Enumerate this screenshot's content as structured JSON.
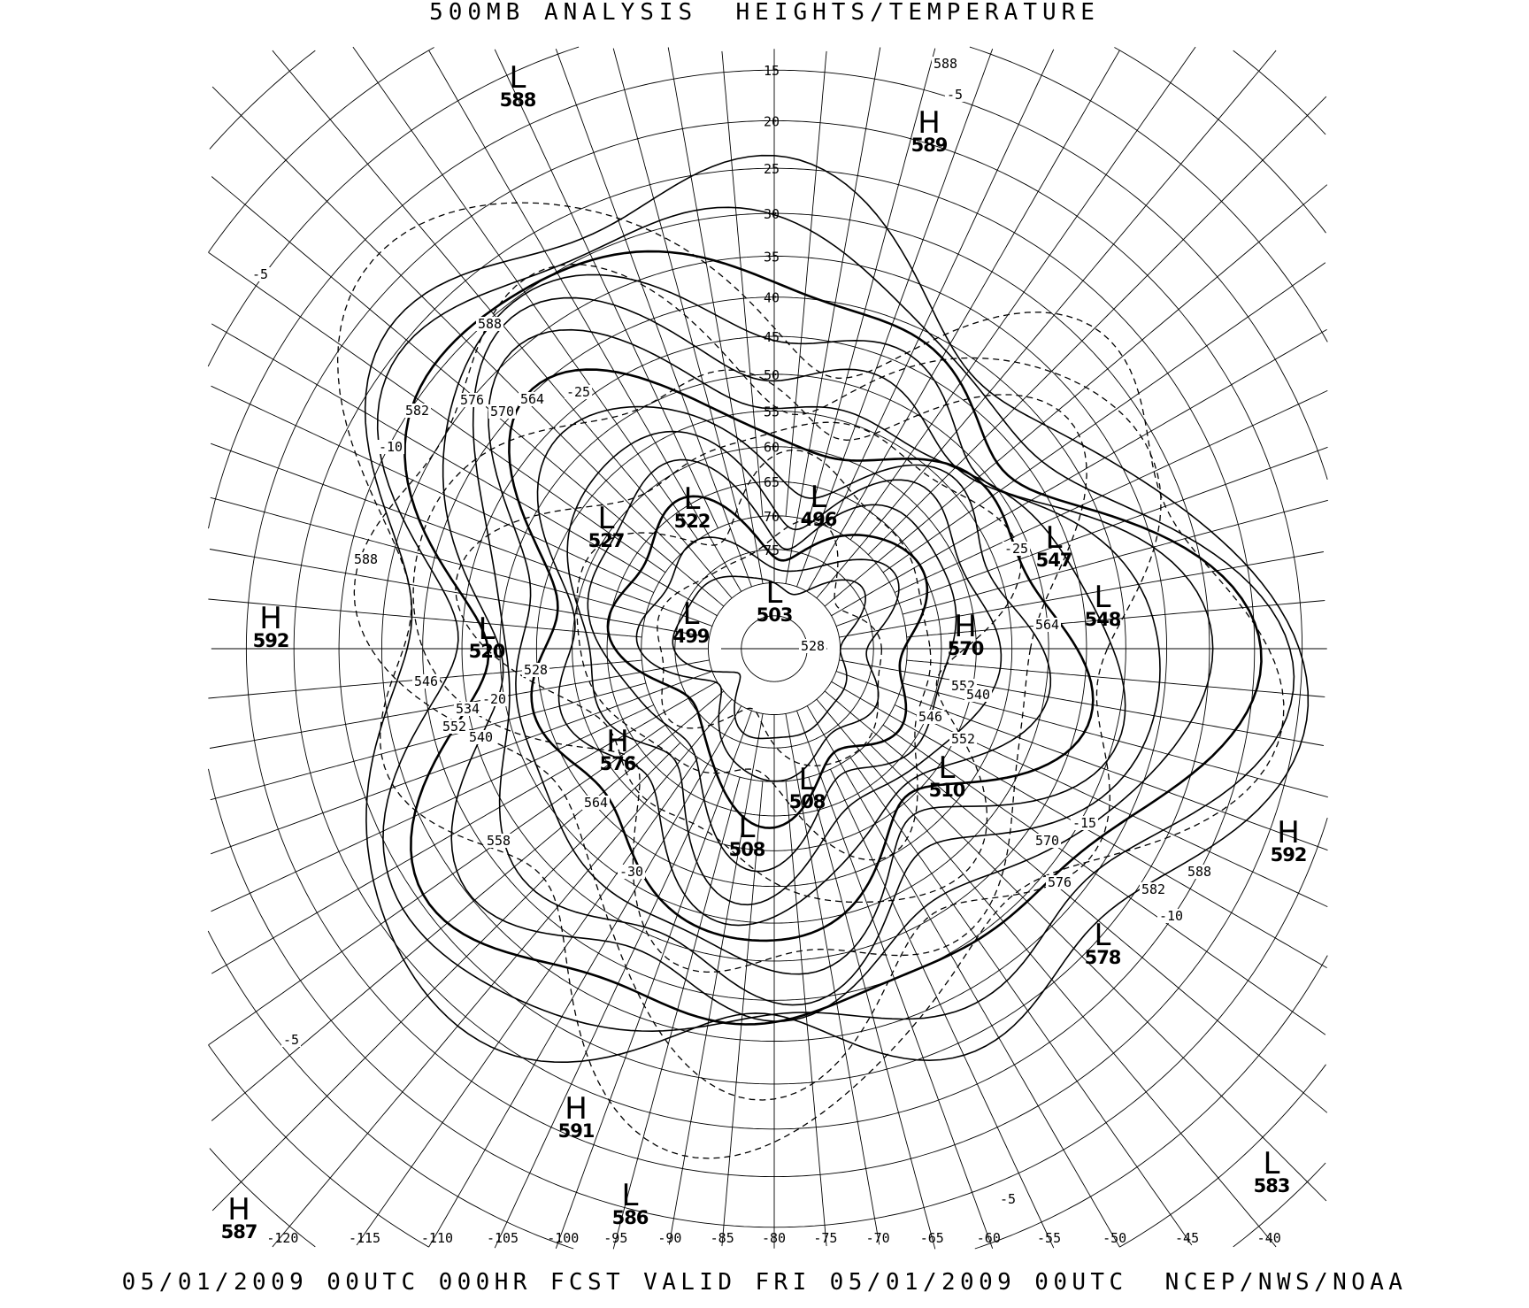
{
  "header": {
    "title": "500MB ANALYSIS  HEIGHTS/TEMPERATURE"
  },
  "footer": {
    "text": "05/01/2009 00UTC 000HR FCST VALID FRI 05/01/2009 00UTC  NCEP/NWS/NOAA"
  },
  "map": {
    "projection": "polar stereographic, north pole",
    "line_color": "#000000",
    "background": "#ffffff",
    "latitude_labels": [
      "15",
      "20",
      "25",
      "30",
      "35",
      "40",
      "45",
      "50",
      "55",
      "60",
      "65",
      "70",
      "75"
    ],
    "longitude_labels": [
      "-120",
      "-115",
      "-110",
      "-105",
      "-100",
      "-95",
      "-90",
      "-85",
      "-80",
      "-75",
      "-70",
      "-65",
      "-60",
      "-55",
      "-50",
      "-45",
      "-40"
    ],
    "height_contours_dam": [
      588,
      582,
      576,
      570,
      564,
      558,
      552,
      546,
      540,
      534,
      528,
      522,
      516
    ],
    "temperature_contours_c": [
      -5,
      -10,
      -15,
      -20,
      -25,
      -30
    ],
    "centers": [
      {
        "type": "L",
        "value": "588"
      },
      {
        "type": "H",
        "value": "589"
      },
      {
        "type": "L",
        "value": "522"
      },
      {
        "type": "L",
        "value": "496"
      },
      {
        "type": "L",
        "value": "527"
      },
      {
        "type": "L",
        "value": "547"
      },
      {
        "type": "L",
        "value": "548"
      },
      {
        "type": "H",
        "value": "592"
      },
      {
        "type": "L",
        "value": "520"
      },
      {
        "type": "L",
        "value": "499"
      },
      {
        "type": "L",
        "value": "503"
      },
      {
        "type": "H",
        "value": "570"
      },
      {
        "type": "H",
        "value": "576"
      },
      {
        "type": "L",
        "value": "508"
      },
      {
        "type": "L",
        "value": "510"
      },
      {
        "type": "L",
        "value": "508"
      },
      {
        "type": "H",
        "value": "592"
      },
      {
        "type": "L",
        "value": "578"
      },
      {
        "type": "H",
        "value": "591"
      },
      {
        "type": "L",
        "value": "583"
      },
      {
        "type": "L",
        "value": "586"
      },
      {
        "type": "H",
        "value": "587"
      }
    ],
    "contour_labels": [
      "588",
      "576",
      "570",
      "564",
      "582",
      "588",
      "552",
      "546",
      "534",
      "540",
      "558",
      "564",
      "528",
      "528",
      "552",
      "564",
      "570",
      "576",
      "582",
      "588",
      "540",
      "546",
      "552",
      "588",
      "-5",
      "-5",
      "-10",
      "-20",
      "-25",
      "-25",
      "-30",
      "-5",
      "-10",
      "-15",
      "-5"
    ]
  }
}
